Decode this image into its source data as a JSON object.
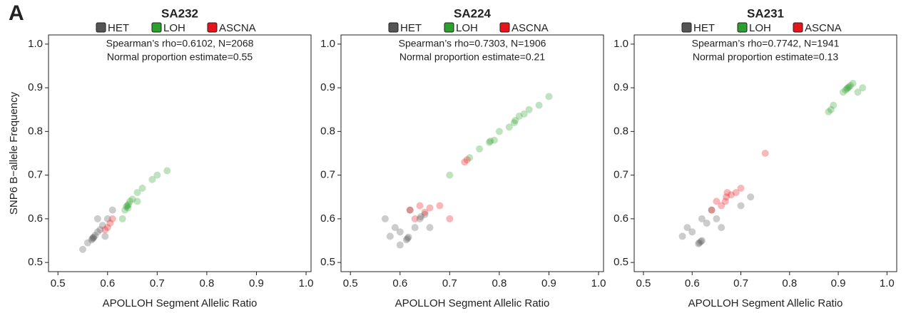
{
  "panel_label": "A",
  "chart_data": [
    {
      "type": "scatter",
      "title": "SA232",
      "annotations": [
        "Spearman’s rho=0.6102, N=2068",
        "Normal proportion estimate=0.55"
      ],
      "xlabel": "APOLLOH Segment Allelic Ratio",
      "ylabel": "SNP6 B−allele Frequency",
      "xlim": [
        0.481,
        1.01
      ],
      "ylim": [
        0.479,
        1.021
      ],
      "xticks": [
        0.5,
        0.6,
        0.7,
        0.8,
        0.9,
        {
          "value": 1,
          "label": "1.0"
        }
      ],
      "yticks": [
        0.5,
        0.6,
        0.7,
        0.8,
        0.9,
        {
          "value": 1,
          "label": "1.0"
        }
      ],
      "point_alpha": 0.3,
      "series": [
        {
          "name": "HET",
          "color": "#555555",
          "x": [
            0.57,
            0.568,
            0.572,
            0.571,
            0.575,
            0.58,
            0.585,
            0.59,
            0.56,
            0.6,
            0.55,
            0.61,
            0.595,
            0.58
          ],
          "y": [
            0.555,
            0.552,
            0.558,
            0.556,
            0.562,
            0.57,
            0.575,
            0.585,
            0.545,
            0.6,
            0.53,
            0.62,
            0.56,
            0.6
          ]
        },
        {
          "name": "LOH",
          "color": "#2ca02c",
          "x": [
            0.64,
            0.638,
            0.642,
            0.641,
            0.645,
            0.635,
            0.65,
            0.66,
            0.67,
            0.69,
            0.7,
            0.72,
            0.63,
            0.66
          ],
          "y": [
            0.63,
            0.628,
            0.633,
            0.625,
            0.64,
            0.62,
            0.645,
            0.66,
            0.67,
            0.69,
            0.7,
            0.71,
            0.6,
            0.64
          ]
        },
        {
          "name": "ASCNA",
          "color": "#e8141c",
          "x": [
            0.6,
            0.605,
            0.61,
            0.595
          ],
          "y": [
            0.58,
            0.59,
            0.6,
            0.575
          ]
        }
      ]
    },
    {
      "type": "scatter",
      "title": "SA224",
      "annotations": [
        "Spearman’s rho=0.7303, N=1906",
        "Normal proportion estimate=0.21"
      ],
      "xlabel": "APOLLOH Segment Allelic Ratio",
      "xlim": [
        0.481,
        1.01
      ],
      "ylim": [
        0.479,
        1.021
      ],
      "xticks": [
        0.5,
        0.6,
        0.7,
        0.8,
        0.9,
        {
          "value": 1,
          "label": "1.0"
        }
      ],
      "yticks": [
        0.5,
        0.6,
        0.7,
        0.8,
        0.9,
        {
          "value": 1,
          "label": "1.0"
        }
      ],
      "point_alpha": 0.3,
      "series": [
        {
          "name": "HET",
          "color": "#555555",
          "x": [
            0.615,
            0.613,
            0.617,
            0.64,
            0.642,
            0.6,
            0.59,
            0.63,
            0.65,
            0.58,
            0.62,
            0.66,
            0.57,
            0.6
          ],
          "y": [
            0.555,
            0.552,
            0.558,
            0.6,
            0.605,
            0.57,
            0.58,
            0.58,
            0.61,
            0.56,
            0.62,
            0.58,
            0.6,
            0.54
          ]
        },
        {
          "name": "LOH",
          "color": "#2ca02c",
          "x": [
            0.78,
            0.782,
            0.79,
            0.8,
            0.83,
            0.832,
            0.84,
            0.82,
            0.85,
            0.86,
            0.76,
            0.74,
            0.7,
            0.88,
            0.9
          ],
          "y": [
            0.775,
            0.778,
            0.78,
            0.8,
            0.82,
            0.825,
            0.835,
            0.81,
            0.84,
            0.85,
            0.76,
            0.74,
            0.7,
            0.86,
            0.88
          ]
        },
        {
          "name": "ASCNA",
          "color": "#e8141c",
          "x": [
            0.62,
            0.64,
            0.65,
            0.66,
            0.68,
            0.7,
            0.63,
            0.73,
            0.735
          ],
          "y": [
            0.62,
            0.63,
            0.615,
            0.625,
            0.63,
            0.6,
            0.6,
            0.73,
            0.735
          ]
        }
      ]
    },
    {
      "type": "scatter",
      "title": "SA231",
      "annotations": [
        "Spearman’s rho=0.7742, N=1941",
        "Normal proportion estimate=0.13"
      ],
      "xlabel": "APOLLOH Segment Allelic Ratio",
      "xlim": [
        0.481,
        1.02
      ],
      "ylim": [
        0.479,
        1.021
      ],
      "xticks": [
        0.5,
        0.6,
        0.7,
        0.8,
        0.9,
        {
          "value": 1,
          "label": "1.0"
        }
      ],
      "yticks": [
        0.5,
        0.6,
        0.7,
        0.8,
        0.9,
        {
          "value": 1,
          "label": "1.0"
        }
      ],
      "point_alpha": 0.3,
      "series": [
        {
          "name": "HET",
          "color": "#555555",
          "x": [
            0.615,
            0.613,
            0.618,
            0.62,
            0.6,
            0.59,
            0.63,
            0.65,
            0.58,
            0.64,
            0.66,
            0.7,
            0.72,
            0.62
          ],
          "y": [
            0.545,
            0.543,
            0.548,
            0.55,
            0.57,
            0.58,
            0.59,
            0.6,
            0.56,
            0.62,
            0.58,
            0.63,
            0.65,
            0.6
          ]
        },
        {
          "name": "LOH",
          "color": "#2ca02c",
          "x": [
            0.92,
            0.918,
            0.922,
            0.925,
            0.915,
            0.93,
            0.91,
            0.94,
            0.88,
            0.885,
            0.89,
            0.95
          ],
          "y": [
            0.9,
            0.898,
            0.902,
            0.905,
            0.895,
            0.91,
            0.89,
            0.89,
            0.845,
            0.85,
            0.86,
            0.9
          ]
        },
        {
          "name": "ASCNA",
          "color": "#e8141c",
          "x": [
            0.67,
            0.668,
            0.672,
            0.68,
            0.69,
            0.66,
            0.7,
            0.65,
            0.64,
            0.75
          ],
          "y": [
            0.65,
            0.64,
            0.66,
            0.655,
            0.66,
            0.63,
            0.67,
            0.64,
            0.62,
            0.75
          ]
        }
      ]
    }
  ]
}
